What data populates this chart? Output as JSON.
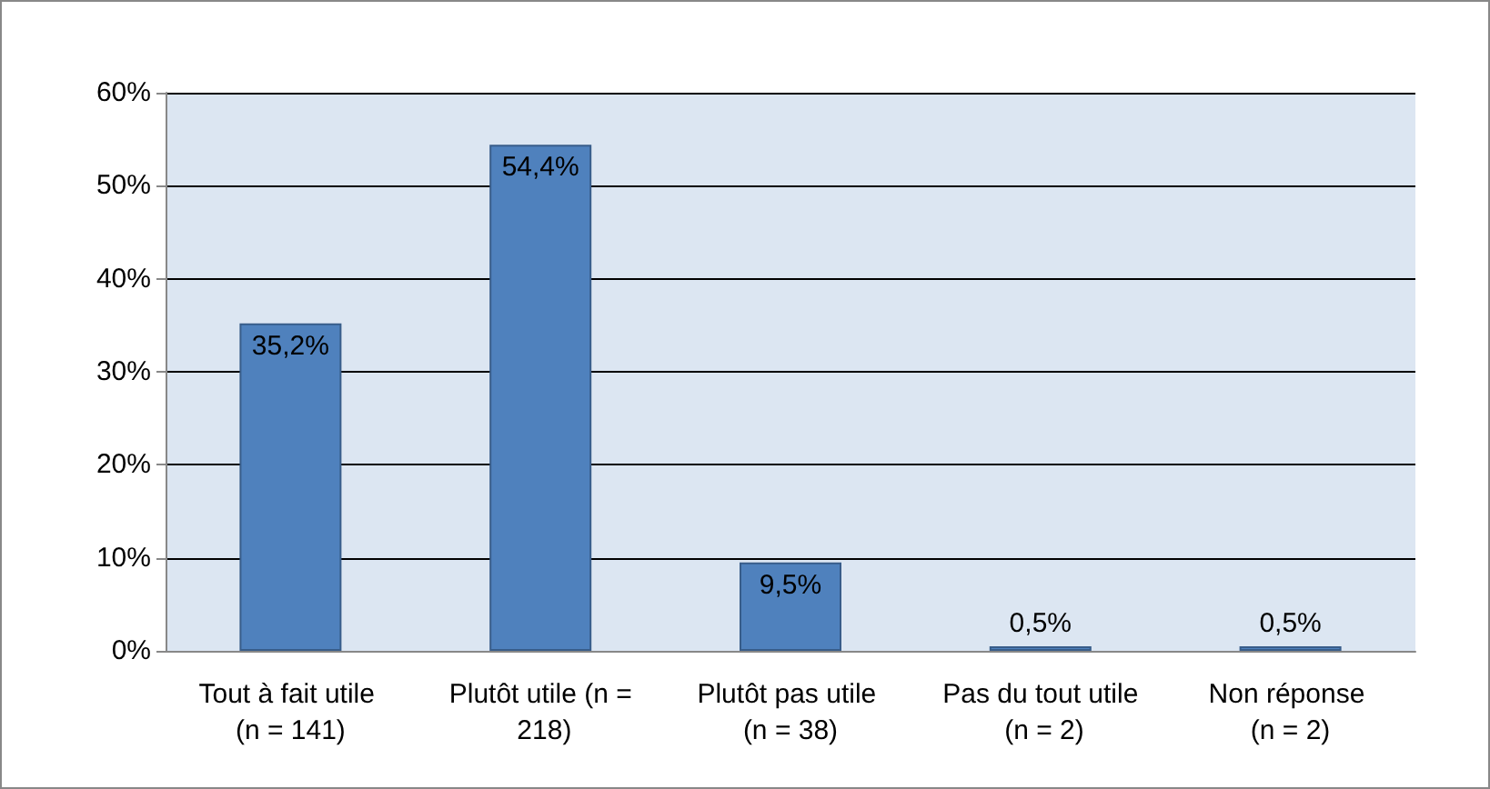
{
  "chart_data": {
    "type": "bar",
    "categories": [
      "Tout à fait utile (n = 141)",
      "Plutôt utile (n = 218)",
      "Plutôt pas utile (n = 38)",
      "Pas du tout utile (n = 2)",
      "Non réponse (n = 2)"
    ],
    "values": [
      35.2,
      54.4,
      9.5,
      0.5,
      0.5
    ],
    "value_labels": [
      "35,2%",
      "54,4%",
      "9,5%",
      "0,5%",
      "0,5%"
    ],
    "color": "#4f81bd",
    "ylim": [
      0,
      60
    ],
    "yticks": [
      {
        "value": 0,
        "label": "0%"
      },
      {
        "value": 10,
        "label": "10%"
      },
      {
        "value": 20,
        "label": "20%"
      },
      {
        "value": 30,
        "label": "30%"
      },
      {
        "value": 40,
        "label": "40%"
      },
      {
        "value": 50,
        "label": "50%"
      },
      {
        "value": 60,
        "label": "60%"
      }
    ],
    "grid": "y"
  }
}
